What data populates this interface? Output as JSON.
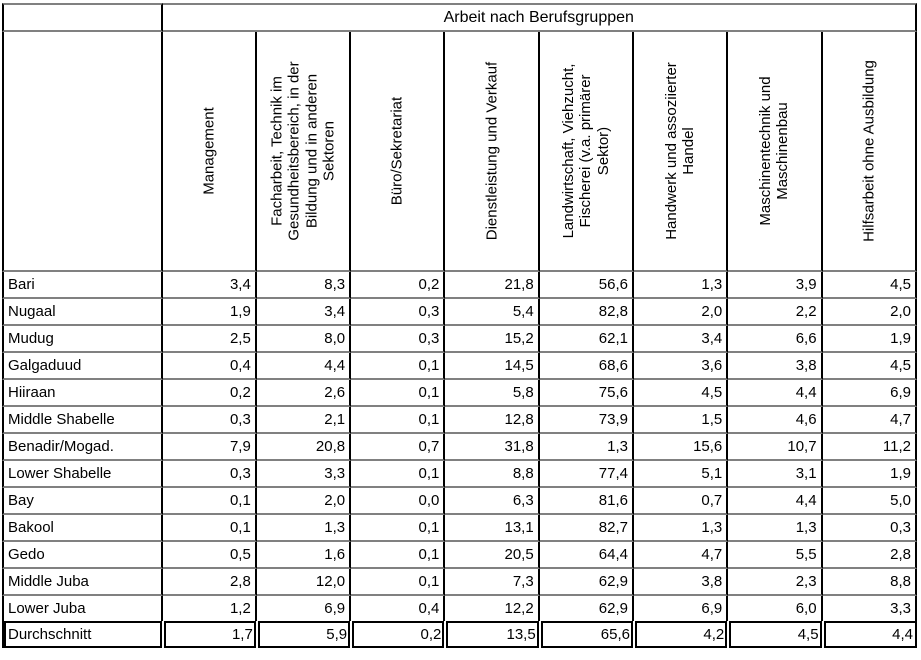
{
  "table": {
    "title": "Arbeit nach Berufsgruppen",
    "corner_label": "",
    "columns": [
      "Management",
      "Facharbeit, Technik im Gesundheitsbereich, in der Bildung und in anderen Sektoren",
      "Büro/Sekretariat",
      "Dienstleistung und Verkauf",
      "Landwirtschaft, Viehzucht, Fischerei (v.a. primärer Sektor)",
      "Handwerk und assoziierter Handel",
      "Maschinentechnik und Maschinenbau",
      "Hilfsarbeit ohne Ausbildung"
    ],
    "rows": [
      {
        "label": "Bari",
        "values": [
          "3,4",
          "8,3",
          "0,2",
          "21,8",
          "56,6",
          "1,3",
          "3,9",
          "4,5"
        ]
      },
      {
        "label": "Nugaal",
        "values": [
          "1,9",
          "3,4",
          "0,3",
          "5,4",
          "82,8",
          "2,0",
          "2,2",
          "2,0"
        ]
      },
      {
        "label": "Mudug",
        "values": [
          "2,5",
          "8,0",
          "0,3",
          "15,2",
          "62,1",
          "3,4",
          "6,6",
          "1,9"
        ]
      },
      {
        "label": "Galgaduud",
        "values": [
          "0,4",
          "4,4",
          "0,1",
          "14,5",
          "68,6",
          "3,6",
          "3,8",
          "4,5"
        ]
      },
      {
        "label": "Hiiraan",
        "values": [
          "0,2",
          "2,6",
          "0,1",
          "5,8",
          "75,6",
          "4,5",
          "4,4",
          "6,9"
        ]
      },
      {
        "label": "Middle Shabelle",
        "values": [
          "0,3",
          "2,1",
          "0,1",
          "12,8",
          "73,9",
          "1,5",
          "4,6",
          "4,7"
        ]
      },
      {
        "label": "Benadir/Mogad.",
        "values": [
          "7,9",
          "20,8",
          "0,7",
          "31,8",
          "1,3",
          "15,6",
          "10,7",
          "11,2"
        ]
      },
      {
        "label": "Lower Shabelle",
        "values": [
          "0,3",
          "3,3",
          "0,1",
          "8,8",
          "77,4",
          "5,1",
          "3,1",
          "1,9"
        ]
      },
      {
        "label": "Bay",
        "values": [
          "0,1",
          "2,0",
          "0,0",
          "6,3",
          "81,6",
          "0,7",
          "4,4",
          "5,0"
        ]
      },
      {
        "label": "Bakool",
        "values": [
          "0,1",
          "1,3",
          "0,1",
          "13,1",
          "82,7",
          "1,3",
          "1,3",
          "0,3"
        ]
      },
      {
        "label": "Gedo",
        "values": [
          "0,5",
          "1,6",
          "0,1",
          "20,5",
          "64,4",
          "4,7",
          "5,5",
          "2,8"
        ]
      },
      {
        "label": "Middle Juba",
        "values": [
          "2,8",
          "12,0",
          "0,1",
          "7,3",
          "62,9",
          "3,8",
          "2,3",
          "8,8"
        ]
      },
      {
        "label": "Lower Juba",
        "values": [
          "1,2",
          "6,9",
          "0,4",
          "12,2",
          "62,9",
          "6,9",
          "6,0",
          "3,3"
        ]
      }
    ],
    "summary_row": {
      "label": "Durchschnitt",
      "values": [
        "1,7",
        "5,9",
        "0,2",
        "13,5",
        "65,6",
        "4,2",
        "4,5",
        "4,4"
      ]
    },
    "colors": {
      "grid_vertical": "#000000",
      "grid_horizontal": "#808080",
      "text": "#000000",
      "background": "#ffffff"
    }
  },
  "chart_data": {
    "type": "table",
    "title": "Arbeit nach Berufsgruppen",
    "categories": [
      "Management",
      "Facharbeit, Technik im Gesundheitsbereich, in der Bildung und in anderen Sektoren",
      "Büro/Sekretariat",
      "Dienstleistung und Verkauf",
      "Landwirtschaft, Viehzucht, Fischerei (v.a. primärer Sektor)",
      "Handwerk und assoziierter Handel",
      "Maschinentechnik und Maschinenbau",
      "Hilfsarbeit ohne Ausbildung"
    ],
    "series": [
      {
        "name": "Bari",
        "values": [
          3.4,
          8.3,
          0.2,
          21.8,
          56.6,
          1.3,
          3.9,
          4.5
        ]
      },
      {
        "name": "Nugaal",
        "values": [
          1.9,
          3.4,
          0.3,
          5.4,
          82.8,
          2.0,
          2.2,
          2.0
        ]
      },
      {
        "name": "Mudug",
        "values": [
          2.5,
          8.0,
          0.3,
          15.2,
          62.1,
          3.4,
          6.6,
          1.9
        ]
      },
      {
        "name": "Galgaduud",
        "values": [
          0.4,
          4.4,
          0.1,
          14.5,
          68.6,
          3.6,
          3.8,
          4.5
        ]
      },
      {
        "name": "Hiiraan",
        "values": [
          0.2,
          2.6,
          0.1,
          5.8,
          75.6,
          4.5,
          4.4,
          6.9
        ]
      },
      {
        "name": "Middle Shabelle",
        "values": [
          0.3,
          2.1,
          0.1,
          12.8,
          73.9,
          1.5,
          4.6,
          4.7
        ]
      },
      {
        "name": "Benadir/Mogad.",
        "values": [
          7.9,
          20.8,
          0.7,
          31.8,
          1.3,
          15.6,
          10.7,
          11.2
        ]
      },
      {
        "name": "Lower Shabelle",
        "values": [
          0.3,
          3.3,
          0.1,
          8.8,
          77.4,
          5.1,
          3.1,
          1.9
        ]
      },
      {
        "name": "Bay",
        "values": [
          0.1,
          2.0,
          0.0,
          6.3,
          81.6,
          0.7,
          4.4,
          5.0
        ]
      },
      {
        "name": "Bakool",
        "values": [
          0.1,
          1.3,
          0.1,
          13.1,
          82.7,
          1.3,
          1.3,
          0.3
        ]
      },
      {
        "name": "Gedo",
        "values": [
          0.5,
          1.6,
          0.1,
          20.5,
          64.4,
          4.7,
          5.5,
          2.8
        ]
      },
      {
        "name": "Middle Juba",
        "values": [
          2.8,
          12.0,
          0.1,
          7.3,
          62.9,
          3.8,
          2.3,
          8.8
        ]
      },
      {
        "name": "Lower Juba",
        "values": [
          1.2,
          6.9,
          0.4,
          12.2,
          62.9,
          6.9,
          6.0,
          3.3
        ]
      },
      {
        "name": "Durchschnitt",
        "values": [
          1.7,
          5.9,
          0.2,
          13.5,
          65.6,
          4.2,
          4.5,
          4.4
        ]
      }
    ]
  }
}
